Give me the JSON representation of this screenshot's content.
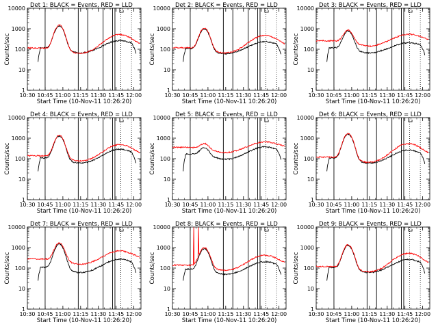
{
  "chart_data": {
    "type": "line",
    "layout": "3x3 grid",
    "common": {
      "xlabel": "Start Time (10-Nov-11 10:26:20)",
      "ylabel": "Counts/sec",
      "yscale": "log",
      "ylim": [
        1,
        10000
      ],
      "y_ticks": [
        1,
        10,
        100,
        1000,
        10000
      ],
      "x_ticks_min": [
        0,
        15,
        30,
        45,
        60,
        75,
        90
      ],
      "x_tick_labels": [
        "10:30",
        "10:45",
        "11:00",
        "11:15",
        "11:30",
        "11:45",
        "12:00"
      ],
      "xlim_min": [
        0,
        96
      ],
      "series_colors": {
        "events": "#000000",
        "lld": "#ff0000"
      },
      "vertical_lines_solid_min": [
        15,
        43,
        51,
        64,
        72,
        74
      ],
      "vertical_lines_dotted_min": [
        79,
        88
      ],
      "flag_box_min": [
        78,
        81
      ]
    },
    "panels": [
      {
        "title": "Det 1: BLACK = Events, RED = LLD",
        "events_base": 120,
        "lld_base": 115,
        "events_peak": 1400,
        "lld_peak": 1500,
        "events_second": 220,
        "lld_second": 480
      },
      {
        "title": "Det 2: BLACK = Events, RED = LLD",
        "events_base": 110,
        "lld_base": 120,
        "events_peak": 1000,
        "lld_peak": 1100,
        "events_second": 190,
        "lld_second": 420
      },
      {
        "title": "Det 3: BLACK = Events, RED = LLD",
        "events_base": 120,
        "lld_base": 260,
        "events_peak": 800,
        "lld_peak": 900,
        "events_second": 160,
        "lld_second": 440
      },
      {
        "title": "Det 4: BLACK = Events, RED = LLD",
        "events_base": 110,
        "lld_base": 140,
        "events_peak": 1300,
        "lld_peak": 1400,
        "events_second": 250,
        "lld_second": 430
      },
      {
        "title": "Det 5: BLACK = Events, RED = LLD",
        "events_base": 170,
        "lld_base": 360,
        "events_peak": 380,
        "lld_peak": 600,
        "events_second": 310,
        "lld_second": 520
      },
      {
        "title": "Det 6: BLACK = Events, RED = LLD",
        "events_base": 110,
        "lld_base": 120,
        "events_peak": 1600,
        "lld_peak": 1700,
        "events_second": 220,
        "lld_second": 490
      },
      {
        "title": "Det 7: BLACK = Events, RED = LLD",
        "events_base": 110,
        "lld_base": 280,
        "events_peak": 1500,
        "lld_peak": 1700,
        "events_second": 230,
        "lld_second": 580
      },
      {
        "title": "Det 8: BLACK = Events, RED = LLD",
        "events_base": 90,
        "lld_base": 140,
        "events_peak": 900,
        "lld_peak": 1000,
        "events_second": 170,
        "lld_second": 370,
        "lld_spikes_min": [
          18,
          22
        ]
      },
      {
        "title": "Det 9: BLACK = Events, RED = LLD",
        "events_base": 110,
        "lld_base": 120,
        "events_peak": 1300,
        "lld_peak": 1400,
        "events_second": 220,
        "lld_second": 480
      }
    ]
  }
}
